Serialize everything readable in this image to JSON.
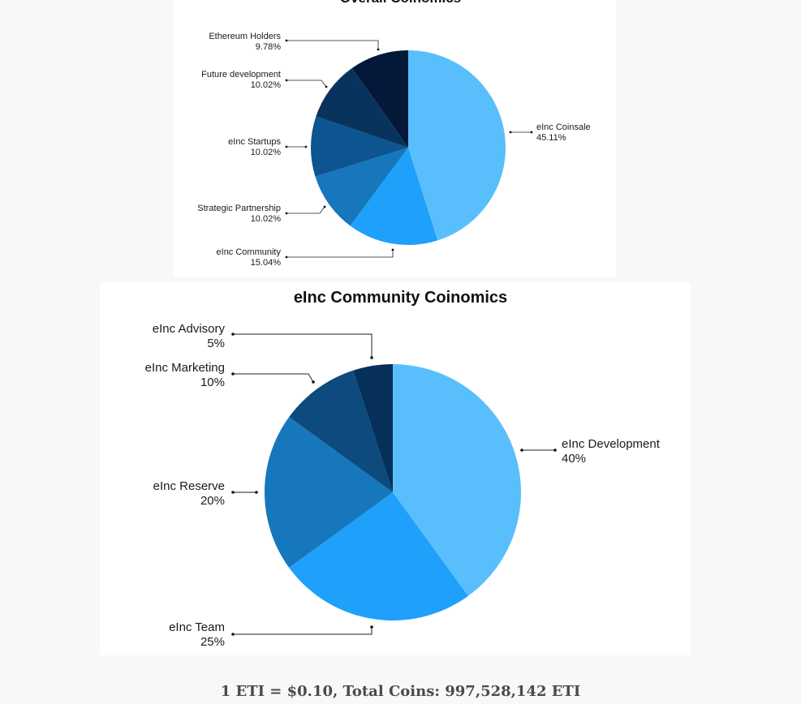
{
  "chart_data": [
    {
      "type": "pie",
      "title": "Overall Coinomics",
      "categories": [
        "eInc Coinsale",
        "eInc Community",
        "Strategic Partnership",
        "eInc Startups",
        "Future development",
        "Ethereum Holders"
      ],
      "values": [
        45.11,
        15.04,
        10.02,
        10.02,
        10.02,
        9.78
      ],
      "value_labels": [
        "45.11%",
        "15.04%",
        "10.02%",
        "10.02%",
        "10.02%",
        "9.78%"
      ],
      "colors": [
        "#59bffc",
        "#1ea0fb",
        "#1677bd",
        "#0d5590",
        "#08335d",
        "#04193a"
      ],
      "legend": "none"
    },
    {
      "type": "pie",
      "title": "eInc Community Coinomics",
      "categories": [
        "eInc Development",
        "eInc Team",
        "eInc Reserve",
        "eInc Marketing",
        "eInc Advisory"
      ],
      "values": [
        40,
        25,
        20,
        10,
        5
      ],
      "value_labels": [
        "40%",
        "25%",
        "20%",
        "10%",
        "5%"
      ],
      "colors": [
        "#59bffc",
        "#1ea0fb",
        "#1677bd",
        "#0d4a7d",
        "#06305a"
      ],
      "legend": "none"
    }
  ],
  "footer": {
    "text": "1 ETI = $0.10, Total Coins: 997,528,142 ETI"
  }
}
